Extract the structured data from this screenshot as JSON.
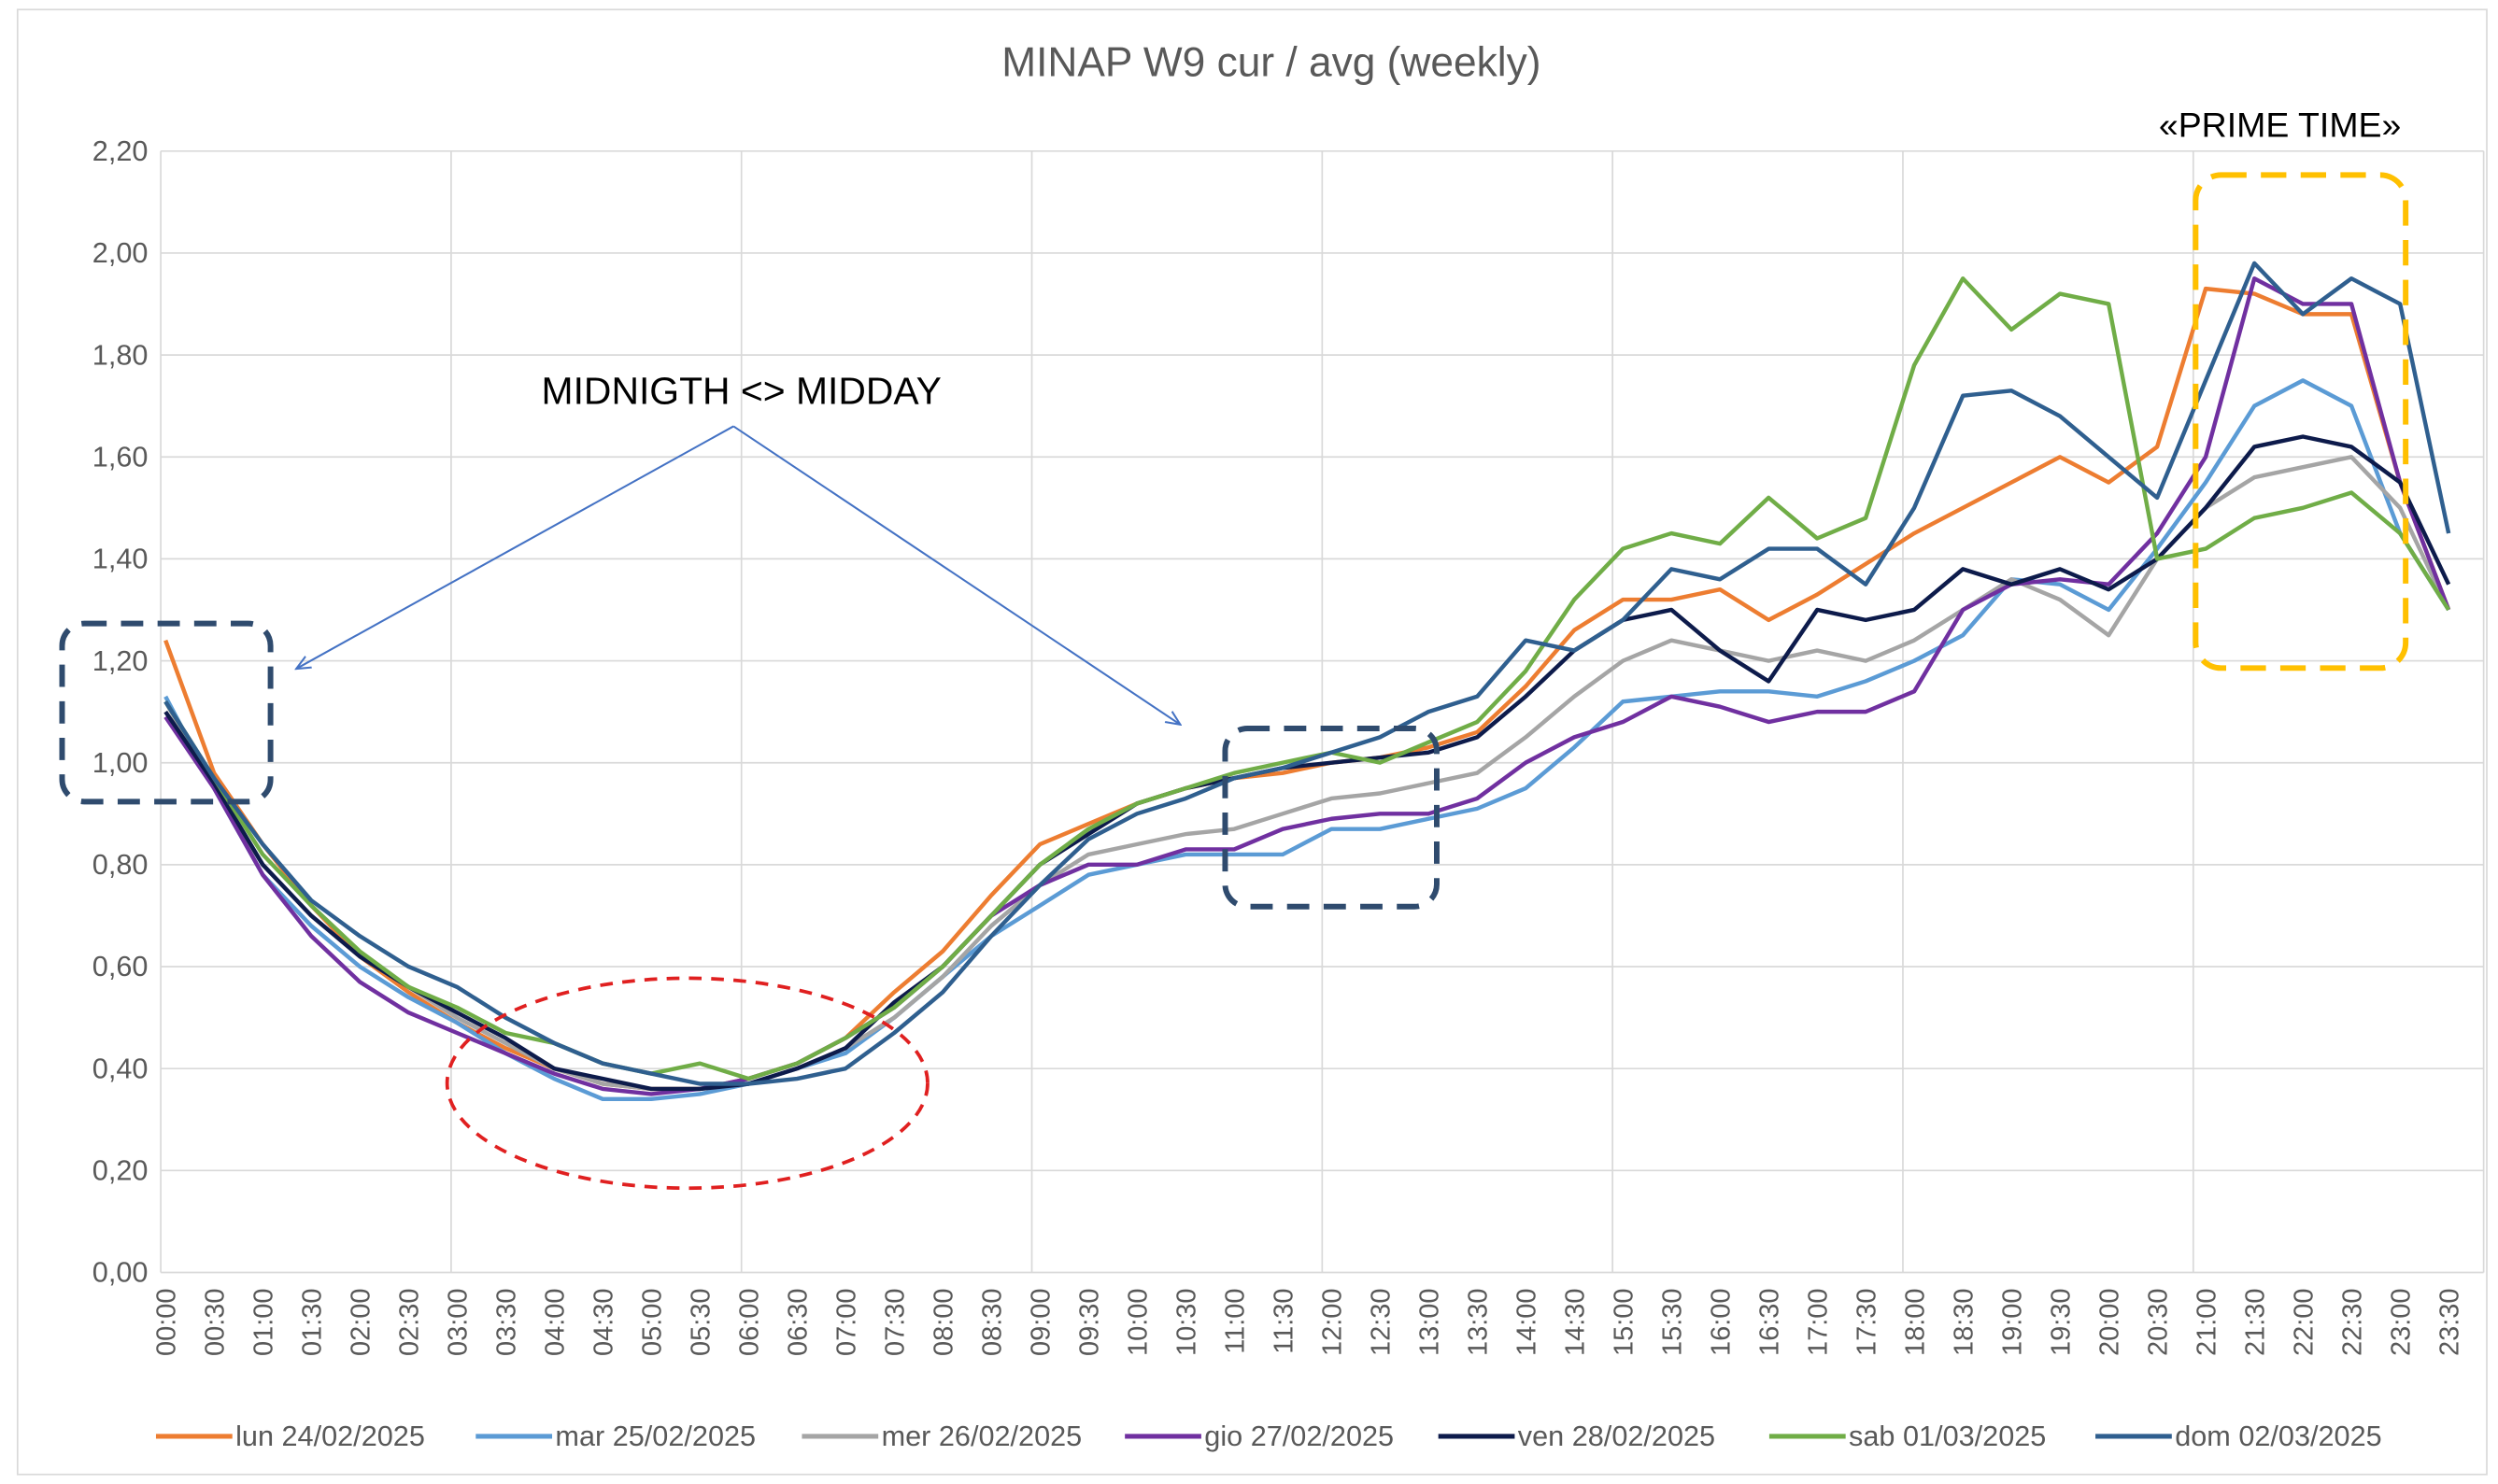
{
  "chart_data": {
    "type": "line",
    "title": "MINAP W9 cur / avg (weekly)",
    "annotations": [
      "MIDNIGTH <> MIDDAY",
      "«PRIME TIME»"
    ],
    "categories": [
      "00:00",
      "00:30",
      "01:00",
      "01:30",
      "02:00",
      "02:30",
      "03:00",
      "03:30",
      "04:00",
      "04:30",
      "05:00",
      "05:30",
      "06:00",
      "06:30",
      "07:00",
      "07:30",
      "08:00",
      "08:30",
      "09:00",
      "09:30",
      "10:00",
      "10:30",
      "11:00",
      "11:30",
      "12:00",
      "12:30",
      "13:00",
      "13:30",
      "14:00",
      "14:30",
      "15:00",
      "15:30",
      "16:00",
      "16:30",
      "17:00",
      "17:30",
      "18:00",
      "18:30",
      "19:00",
      "19:30",
      "20:00",
      "20:30",
      "21:00",
      "21:30",
      "22:00",
      "22:30",
      "23:00",
      "23:30"
    ],
    "ylim": [
      0,
      2.2
    ],
    "yticks": [
      {
        "value": 0,
        "label": "0,00"
      },
      {
        "value": 0.2,
        "label": "0,20"
      },
      {
        "value": 0.4,
        "label": "0,40"
      },
      {
        "value": 0.6,
        "label": "0,60"
      },
      {
        "value": 0.8,
        "label": "0,80"
      },
      {
        "value": 1.0,
        "label": "1,00"
      },
      {
        "value": 1.2,
        "label": "1,20"
      },
      {
        "value": 1.4,
        "label": "1,40"
      },
      {
        "value": 1.6,
        "label": "1,60"
      },
      {
        "value": 1.8,
        "label": "1,80"
      },
      {
        "value": 2.0,
        "label": "2,00"
      },
      {
        "value": 2.2,
        "label": "2,20"
      }
    ],
    "grid": true,
    "legend": "bottom",
    "series": [
      {
        "name": "lun 24/02/2025",
        "color": "#ed7d31",
        "values": [
          1.24,
          0.98,
          0.84,
          0.72,
          0.62,
          0.55,
          0.49,
          0.44,
          0.4,
          0.37,
          0.36,
          0.36,
          0.38,
          0.41,
          0.46,
          0.55,
          0.63,
          0.74,
          0.84,
          0.88,
          0.92,
          0.95,
          0.97,
          0.98,
          1.0,
          1.01,
          1.03,
          1.06,
          1.15,
          1.26,
          1.32,
          1.32,
          1.34,
          1.28,
          1.33,
          1.39,
          1.45,
          1.5,
          1.55,
          1.6,
          1.55,
          1.62,
          1.93,
          1.92,
          1.88,
          1.88,
          1.55,
          1.3
        ]
      },
      {
        "name": "mar 25/02/2025",
        "color": "#5b9bd5",
        "values": [
          1.13,
          0.95,
          0.78,
          0.68,
          0.6,
          0.54,
          0.49,
          0.43,
          0.38,
          0.34,
          0.34,
          0.35,
          0.37,
          0.4,
          0.43,
          0.5,
          0.58,
          0.66,
          0.72,
          0.78,
          0.8,
          0.82,
          0.82,
          0.82,
          0.87,
          0.87,
          0.89,
          0.91,
          0.95,
          1.03,
          1.12,
          1.13,
          1.14,
          1.14,
          1.13,
          1.16,
          1.2,
          1.25,
          1.36,
          1.35,
          1.3,
          1.42,
          1.55,
          1.7,
          1.75,
          1.7,
          1.45,
          1.3
        ]
      },
      {
        "name": "mer 26/02/2025",
        "color": "#a5a5a5",
        "values": [
          1.12,
          0.95,
          0.8,
          0.7,
          0.62,
          0.56,
          0.5,
          0.45,
          0.4,
          0.37,
          0.36,
          0.36,
          0.37,
          0.4,
          0.44,
          0.5,
          0.58,
          0.68,
          0.76,
          0.82,
          0.84,
          0.86,
          0.87,
          0.9,
          0.93,
          0.94,
          0.96,
          0.98,
          1.05,
          1.13,
          1.2,
          1.24,
          1.22,
          1.2,
          1.22,
          1.2,
          1.24,
          1.3,
          1.36,
          1.32,
          1.25,
          1.4,
          1.5,
          1.56,
          1.58,
          1.6,
          1.5,
          1.3
        ]
      },
      {
        "name": "gio 27/02/2025",
        "color": "#7030a0",
        "values": [
          1.09,
          0.95,
          0.78,
          0.66,
          0.57,
          0.51,
          0.47,
          0.43,
          0.39,
          0.36,
          0.35,
          0.36,
          0.38,
          0.41,
          0.46,
          0.52,
          0.6,
          0.7,
          0.76,
          0.8,
          0.8,
          0.83,
          0.83,
          0.87,
          0.89,
          0.9,
          0.9,
          0.93,
          1.0,
          1.05,
          1.08,
          1.13,
          1.11,
          1.08,
          1.1,
          1.1,
          1.14,
          1.3,
          1.35,
          1.36,
          1.35,
          1.45,
          1.6,
          1.95,
          1.9,
          1.9,
          1.55,
          1.3
        ]
      },
      {
        "name": "ven 28/02/2025",
        "color": "#0d1b4b",
        "values": [
          1.1,
          0.96,
          0.8,
          0.7,
          0.62,
          0.56,
          0.51,
          0.46,
          0.4,
          0.38,
          0.36,
          0.36,
          0.37,
          0.4,
          0.44,
          0.53,
          0.6,
          0.7,
          0.8,
          0.86,
          0.92,
          0.95,
          0.97,
          0.99,
          1.0,
          1.01,
          1.02,
          1.05,
          1.13,
          1.22,
          1.28,
          1.3,
          1.22,
          1.16,
          1.3,
          1.28,
          1.3,
          1.38,
          1.35,
          1.38,
          1.34,
          1.4,
          1.5,
          1.62,
          1.64,
          1.62,
          1.55,
          1.35
        ]
      },
      {
        "name": "sab 01/03/2025",
        "color": "#70ad47",
        "values": [
          1.12,
          0.97,
          0.82,
          0.72,
          0.63,
          0.56,
          0.52,
          0.47,
          0.45,
          0.41,
          0.39,
          0.41,
          0.38,
          0.41,
          0.46,
          0.52,
          0.6,
          0.7,
          0.8,
          0.87,
          0.92,
          0.95,
          0.98,
          1.0,
          1.02,
          1.0,
          1.04,
          1.08,
          1.18,
          1.32,
          1.42,
          1.45,
          1.43,
          1.52,
          1.44,
          1.48,
          1.78,
          1.95,
          1.85,
          1.92,
          1.9,
          1.4,
          1.42,
          1.48,
          1.5,
          1.53,
          1.45,
          1.3
        ]
      },
      {
        "name": "dom 02/03/2025",
        "color": "#2f5f8f",
        "values": [
          1.12,
          0.97,
          0.84,
          0.73,
          0.66,
          0.6,
          0.56,
          0.5,
          0.45,
          0.41,
          0.39,
          0.37,
          0.37,
          0.38,
          0.4,
          0.47,
          0.55,
          0.66,
          0.76,
          0.85,
          0.9,
          0.93,
          0.97,
          0.99,
          1.02,
          1.05,
          1.1,
          1.13,
          1.24,
          1.22,
          1.28,
          1.38,
          1.36,
          1.42,
          1.42,
          1.35,
          1.5,
          1.72,
          1.73,
          1.68,
          1.6,
          1.52,
          1.75,
          1.98,
          1.88,
          1.95,
          1.9,
          1.45
        ]
      }
    ]
  }
}
